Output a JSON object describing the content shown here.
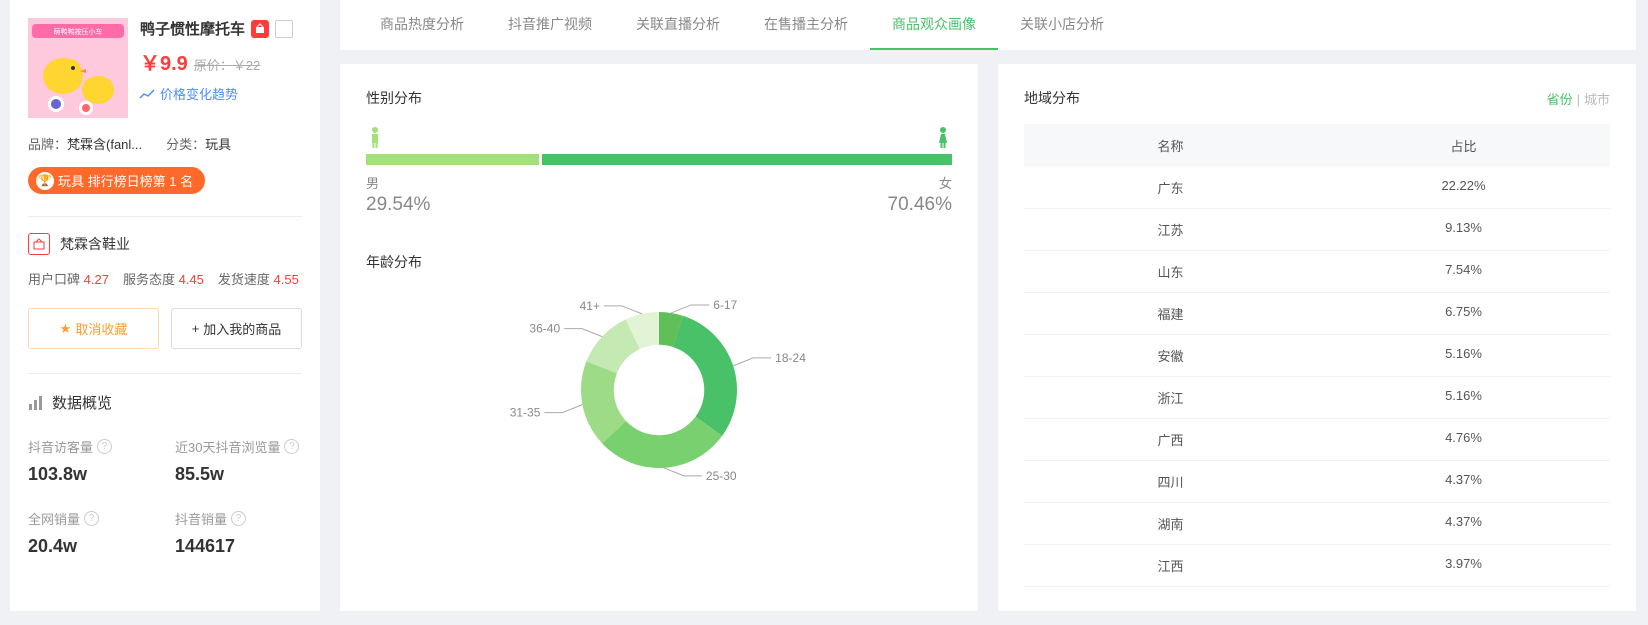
{
  "product": {
    "title": "鸭子惯性摩托车",
    "price": "￥9.9",
    "orig_label": "原价：",
    "orig_price": "￥22",
    "trend_text": "价格变化趋势",
    "brand_label": "品牌：",
    "brand_value": "梵霖含(fanl...",
    "category_label": "分类：",
    "category_value": "玩具",
    "rank_text": "玩具 排行榜日榜第 1 名"
  },
  "shop": {
    "name": "梵霖含鞋业",
    "ratings": [
      {
        "label": "用户口碑",
        "value": "4.27"
      },
      {
        "label": "服务态度",
        "value": "4.45"
      },
      {
        "label": "发货速度",
        "value": "4.55"
      }
    ]
  },
  "buttons": {
    "fav": "取消收藏",
    "add": "加入我的商品"
  },
  "overview": {
    "title": "数据概览",
    "stats": [
      {
        "label": "抖音访客量",
        "value": "103.8w",
        "q": true
      },
      {
        "label": "近30天抖音浏览量",
        "value": "85.5w",
        "q": true
      },
      {
        "label": "全网销量",
        "value": "20.4w",
        "q": true
      },
      {
        "label": "抖音销量",
        "value": "144617",
        "q": true
      }
    ]
  },
  "tabs": [
    "商品热度分析",
    "抖音推广视频",
    "关联直播分析",
    "在售播主分析",
    "商品观众画像",
    "关联小店分析"
  ],
  "active_tab": 4,
  "gender": {
    "title": "性别分布",
    "male_label": "男",
    "female_label": "女",
    "male_pct": "29.54%",
    "female_pct": "70.46%",
    "male_ratio": 29.54,
    "colors": {
      "male": "#a3e077",
      "female": "#49c168"
    }
  },
  "age": {
    "title": "年龄分布",
    "type": "donut",
    "segments": [
      {
        "label": "6-17",
        "value": 5,
        "color": "#5fbf58"
      },
      {
        "label": "18-24",
        "value": 30,
        "color": "#49c168"
      },
      {
        "label": "25-30",
        "value": 28,
        "color": "#79d06f"
      },
      {
        "label": "31-35",
        "value": 18,
        "color": "#9ddb87"
      },
      {
        "label": "36-40",
        "value": 12,
        "color": "#c4e9b2"
      },
      {
        "label": "41+",
        "value": 7,
        "color": "#e3f4d6"
      }
    ],
    "inner_radius": 0.58
  },
  "region": {
    "title": "地域分布",
    "toggle": {
      "province": "省份",
      "city": "城市"
    },
    "columns": [
      "名称",
      "占比"
    ],
    "rows": [
      {
        "name": "广东",
        "pct": "22.22%"
      },
      {
        "name": "江苏",
        "pct": "9.13%"
      },
      {
        "name": "山东",
        "pct": "7.54%"
      },
      {
        "name": "福建",
        "pct": "6.75%"
      },
      {
        "name": "安徽",
        "pct": "5.16%"
      },
      {
        "name": "浙江",
        "pct": "5.16%"
      },
      {
        "name": "广西",
        "pct": "4.76%"
      },
      {
        "name": "四川",
        "pct": "4.37%"
      },
      {
        "name": "湖南",
        "pct": "4.37%"
      },
      {
        "name": "江西",
        "pct": "3.97%"
      }
    ]
  }
}
